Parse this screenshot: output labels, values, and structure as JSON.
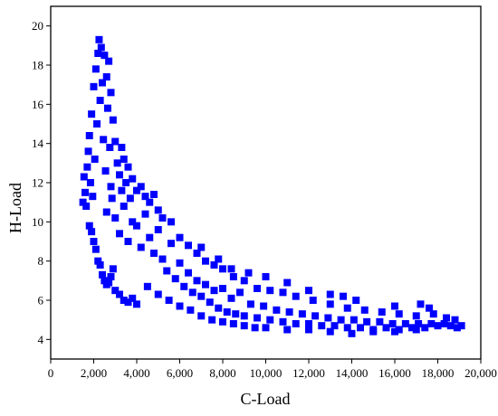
{
  "chart_data": {
    "type": "scatter",
    "title": "",
    "xlabel": "C-Load",
    "ylabel": "H-Load",
    "xlim": [
      0,
      20000
    ],
    "ylim": [
      3,
      21
    ],
    "xticks": [
      0,
      2000,
      4000,
      6000,
      8000,
      10000,
      12000,
      14000,
      16000,
      18000,
      20000
    ],
    "xtick_labels": [
      "0",
      "2,000",
      "4,000",
      "6,000",
      "8,000",
      "10,000",
      "12,000",
      "14,000",
      "16,000",
      "18,000",
      "20,000"
    ],
    "yticks": [
      4,
      6,
      8,
      10,
      12,
      14,
      16,
      18,
      20
    ],
    "ytick_labels": [
      "4",
      "6",
      "8",
      "10",
      "12",
      "14",
      "16",
      "18",
      "20"
    ],
    "grid": false,
    "legend": "none",
    "marker": "square",
    "color": "#0000ff",
    "series": [
      {
        "points": [
          [
            1500,
            11.0
          ],
          [
            1550,
            12.3
          ],
          [
            1600,
            11.5
          ],
          [
            1650,
            10.8
          ],
          [
            1700,
            12.8
          ],
          [
            1750,
            13.6
          ],
          [
            1800,
            14.4
          ],
          [
            1850,
            12.0
          ],
          [
            1900,
            15.5
          ],
          [
            1950,
            11.3
          ],
          [
            2000,
            16.9
          ],
          [
            2050,
            13.2
          ],
          [
            2100,
            17.8
          ],
          [
            2150,
            15.0
          ],
          [
            2200,
            18.6
          ],
          [
            2250,
            19.3
          ],
          [
            2300,
            16.2
          ],
          [
            2350,
            18.9
          ],
          [
            2400,
            17.1
          ],
          [
            2450,
            14.2
          ],
          [
            2500,
            18.5
          ],
          [
            2550,
            12.6
          ],
          [
            2600,
            17.4
          ],
          [
            2650,
            15.8
          ],
          [
            2700,
            18.2
          ],
          [
            2750,
            13.8
          ],
          [
            2800,
            16.6
          ],
          [
            2850,
            11.2
          ],
          [
            2900,
            15.2
          ],
          [
            3000,
            14.1
          ],
          [
            3100,
            13.0
          ],
          [
            3200,
            12.4
          ],
          [
            3300,
            11.6
          ],
          [
            1800,
            9.8
          ],
          [
            1900,
            9.5
          ],
          [
            2000,
            9.0
          ],
          [
            2100,
            8.6
          ],
          [
            2200,
            8.0
          ],
          [
            2300,
            7.8
          ],
          [
            2400,
            7.3
          ],
          [
            2500,
            7.0
          ],
          [
            2600,
            6.8
          ],
          [
            2700,
            6.9
          ],
          [
            2800,
            7.2
          ],
          [
            2900,
            7.6
          ],
          [
            3000,
            6.5
          ],
          [
            3200,
            6.3
          ],
          [
            3400,
            6.0
          ],
          [
            3600,
            5.9
          ],
          [
            3800,
            6.1
          ],
          [
            4000,
            5.8
          ],
          [
            2600,
            10.5
          ],
          [
            2800,
            11.8
          ],
          [
            3000,
            10.2
          ],
          [
            3200,
            9.4
          ],
          [
            3400,
            10.8
          ],
          [
            3500,
            12.0
          ],
          [
            3600,
            9.0
          ],
          [
            3700,
            11.2
          ],
          [
            3800,
            10.0
          ],
          [
            4000,
            9.8
          ],
          [
            4200,
            8.7
          ],
          [
            4400,
            10.4
          ],
          [
            4600,
            9.2
          ],
          [
            4800,
            8.4
          ],
          [
            5000,
            9.6
          ],
          [
            5200,
            8.1
          ],
          [
            5400,
            7.5
          ],
          [
            5600,
            8.9
          ],
          [
            5800,
            7.1
          ],
          [
            6000,
            7.9
          ],
          [
            6200,
            6.7
          ],
          [
            6400,
            7.4
          ],
          [
            6600,
            6.4
          ],
          [
            6800,
            7.0
          ],
          [
            7000,
            6.2
          ],
          [
            7200,
            6.8
          ],
          [
            7400,
            5.9
          ],
          [
            7600,
            6.5
          ],
          [
            7800,
            5.6
          ],
          [
            8000,
            6.6
          ],
          [
            8200,
            5.4
          ],
          [
            8400,
            6.1
          ],
          [
            8600,
            5.3
          ],
          [
            8800,
            6.4
          ],
          [
            9000,
            5.2
          ],
          [
            9300,
            5.8
          ],
          [
            9600,
            5.1
          ],
          [
            9900,
            5.7
          ],
          [
            10200,
            5.0
          ],
          [
            10500,
            5.5
          ],
          [
            10800,
            4.9
          ],
          [
            11100,
            5.4
          ],
          [
            11400,
            4.8
          ],
          [
            11700,
            5.3
          ],
          [
            12000,
            4.8
          ],
          [
            12300,
            5.2
          ],
          [
            12600,
            4.7
          ],
          [
            12900,
            5.1
          ],
          [
            13200,
            4.7
          ],
          [
            13500,
            5.0
          ],
          [
            13800,
            4.6
          ],
          [
            14100,
            5.0
          ],
          [
            14400,
            4.6
          ],
          [
            14700,
            4.9
          ],
          [
            15000,
            4.5
          ],
          [
            15300,
            4.9
          ],
          [
            15600,
            4.6
          ],
          [
            15900,
            4.8
          ],
          [
            16200,
            4.5
          ],
          [
            16500,
            4.8
          ],
          [
            16800,
            4.6
          ],
          [
            17100,
            4.8
          ],
          [
            17400,
            4.6
          ],
          [
            17700,
            4.8
          ],
          [
            18000,
            4.7
          ],
          [
            18300,
            4.8
          ],
          [
            18600,
            4.7
          ],
          [
            18900,
            4.6
          ],
          [
            19100,
            4.7
          ],
          [
            4500,
            6.7
          ],
          [
            5000,
            6.3
          ],
          [
            5500,
            6.0
          ],
          [
            6000,
            5.7
          ],
          [
            6500,
            5.5
          ],
          [
            7000,
            5.2
          ],
          [
            7500,
            5.0
          ],
          [
            8000,
            4.9
          ],
          [
            8500,
            4.8
          ],
          [
            9000,
            4.7
          ],
          [
            9500,
            4.6
          ],
          [
            10000,
            4.6
          ],
          [
            11000,
            4.5
          ],
          [
            12000,
            4.5
          ],
          [
            13000,
            4.4
          ],
          [
            14000,
            4.3
          ],
          [
            15000,
            4.4
          ],
          [
            16000,
            4.4
          ],
          [
            17000,
            4.5
          ],
          [
            3300,
            13.8
          ],
          [
            3400,
            13.2
          ],
          [
            3600,
            12.8
          ],
          [
            3800,
            12.2
          ],
          [
            4000,
            11.6
          ],
          [
            4200,
            11.8
          ],
          [
            4400,
            11.3
          ],
          [
            4600,
            11.0
          ],
          [
            4800,
            11.4
          ],
          [
            5000,
            10.6
          ],
          [
            5200,
            10.2
          ],
          [
            5600,
            10.0
          ],
          [
            6000,
            9.2
          ],
          [
            6400,
            8.8
          ],
          [
            6800,
            8.4
          ],
          [
            7200,
            8.0
          ],
          [
            7600,
            7.8
          ],
          [
            8000,
            7.6
          ],
          [
            8500,
            7.2
          ],
          [
            9000,
            7.0
          ],
          [
            9600,
            6.6
          ],
          [
            10200,
            6.5
          ],
          [
            10800,
            6.4
          ],
          [
            11400,
            6.2
          ],
          [
            12200,
            6.0
          ],
          [
            13000,
            5.8
          ],
          [
            13800,
            5.6
          ],
          [
            14600,
            5.5
          ],
          [
            15400,
            5.4
          ],
          [
            16200,
            5.3
          ],
          [
            17000,
            5.2
          ],
          [
            17800,
            5.3
          ],
          [
            18400,
            5.1
          ],
          [
            18800,
            5.0
          ],
          [
            7000,
            8.7
          ],
          [
            7800,
            8.1
          ],
          [
            8400,
            7.6
          ],
          [
            9200,
            7.4
          ],
          [
            10000,
            7.2
          ],
          [
            11000,
            6.9
          ],
          [
            12000,
            6.5
          ],
          [
            13000,
            6.3
          ],
          [
            13600,
            6.2
          ],
          [
            14200,
            6.0
          ],
          [
            16000,
            5.7
          ],
          [
            17200,
            5.8
          ],
          [
            17600,
            5.6
          ]
        ]
      }
    ]
  }
}
